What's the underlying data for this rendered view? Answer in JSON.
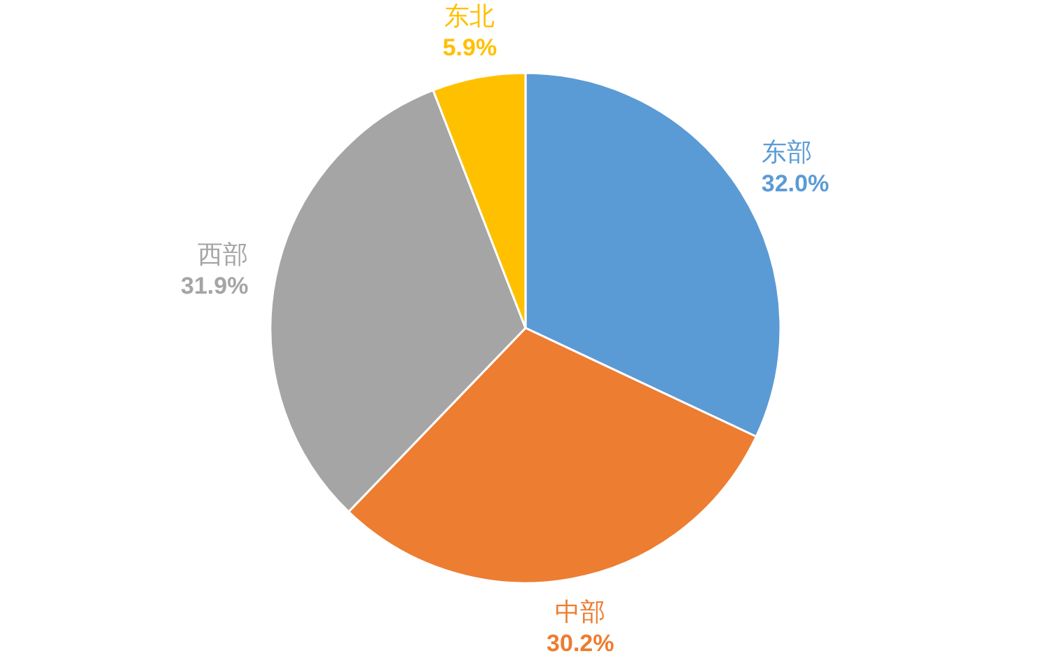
{
  "chart_data": {
    "type": "pie",
    "categories": [
      "东部",
      "中部",
      "西部",
      "东北"
    ],
    "values": [
      32.0,
      30.2,
      31.9,
      5.9
    ],
    "colors": [
      "#5b9bd5",
      "#ed7d31",
      "#a5a5a5",
      "#ffc000"
    ],
    "value_labels": [
      "32.0%",
      "30.2%",
      "31.9%",
      "5.9%"
    ]
  }
}
